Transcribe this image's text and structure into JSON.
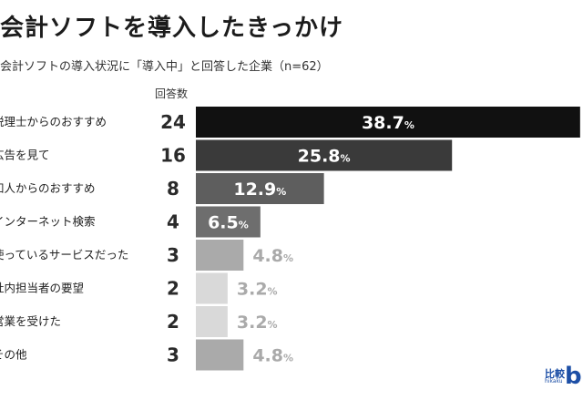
{
  "header": {
    "title": "会計ソフトを導入したきっかけ",
    "subtitle": "会計ソフトの導入状況に「導入中」と回答した企業（n=62）"
  },
  "logo": {
    "jp": "比較",
    "en": "hikaku",
    "mark": "bi"
  },
  "chart_data": {
    "type": "bar",
    "orientation": "horizontal",
    "count_header": "回答数",
    "categories": [
      "税理士からのおすすめ",
      "広告を見て",
      "知人からのおすすめ",
      "インターネット検索",
      "使っているサービスだった",
      "社内担当者の要望",
      "営業を受けた",
      "その他"
    ],
    "counts": [
      "24",
      "16",
      "8",
      "4",
      "3",
      "2",
      "2",
      "3"
    ],
    "values": [
      38.7,
      25.8,
      12.9,
      6.5,
      4.8,
      3.2,
      3.2,
      4.8
    ],
    "labels": [
      "38.7",
      "25.8",
      "12.9",
      "6.5",
      "4.8",
      "3.2",
      "3.2",
      "4.8"
    ],
    "unit": "%",
    "colors": [
      "#111111",
      "#3a3a3a",
      "#5e5e5e",
      "#6e6e6e",
      "#aaaaaa",
      "#d9d9d9",
      "#d9d9d9",
      "#aaaaaa"
    ],
    "label_colors": [
      "#ffffff",
      "#ffffff",
      "#ffffff",
      "#ffffff",
      "#aaaaaa",
      "#aaaaaa",
      "#aaaaaa",
      "#aaaaaa"
    ]
  }
}
